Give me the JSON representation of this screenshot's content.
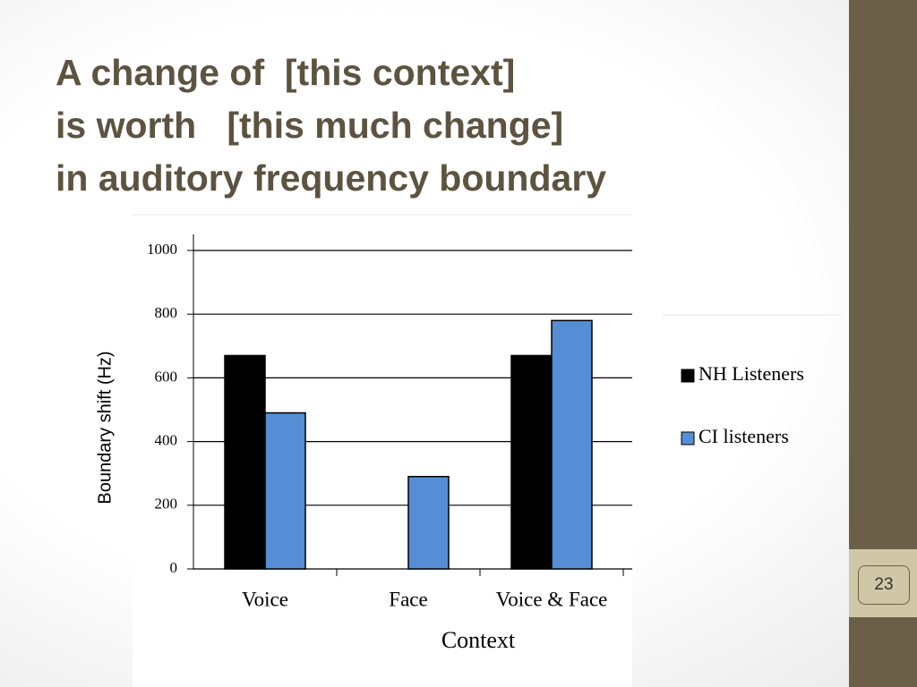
{
  "slide": {
    "title_lines": [
      "A change of  [this context]",
      "is worth   [this much change]",
      "in auditory frequency boundary"
    ],
    "page_number": "23"
  },
  "chart_data": {
    "type": "bar",
    "x_label": "Context",
    "y_label": "Boundary shift (Hz)",
    "categories": [
      "Voice",
      "Face",
      "Voice & Face"
    ],
    "series": [
      {
        "name": "NH Listeners",
        "color": "#000000",
        "values": [
          670,
          null,
          670
        ]
      },
      {
        "name": "CI listeners",
        "color": "#558ed5",
        "values": [
          490,
          290,
          780
        ]
      }
    ],
    "ylim": [
      0,
      1000
    ],
    "yticks": [
      0,
      200,
      400,
      600,
      800,
      1000
    ],
    "grid": true,
    "legend": "right"
  }
}
